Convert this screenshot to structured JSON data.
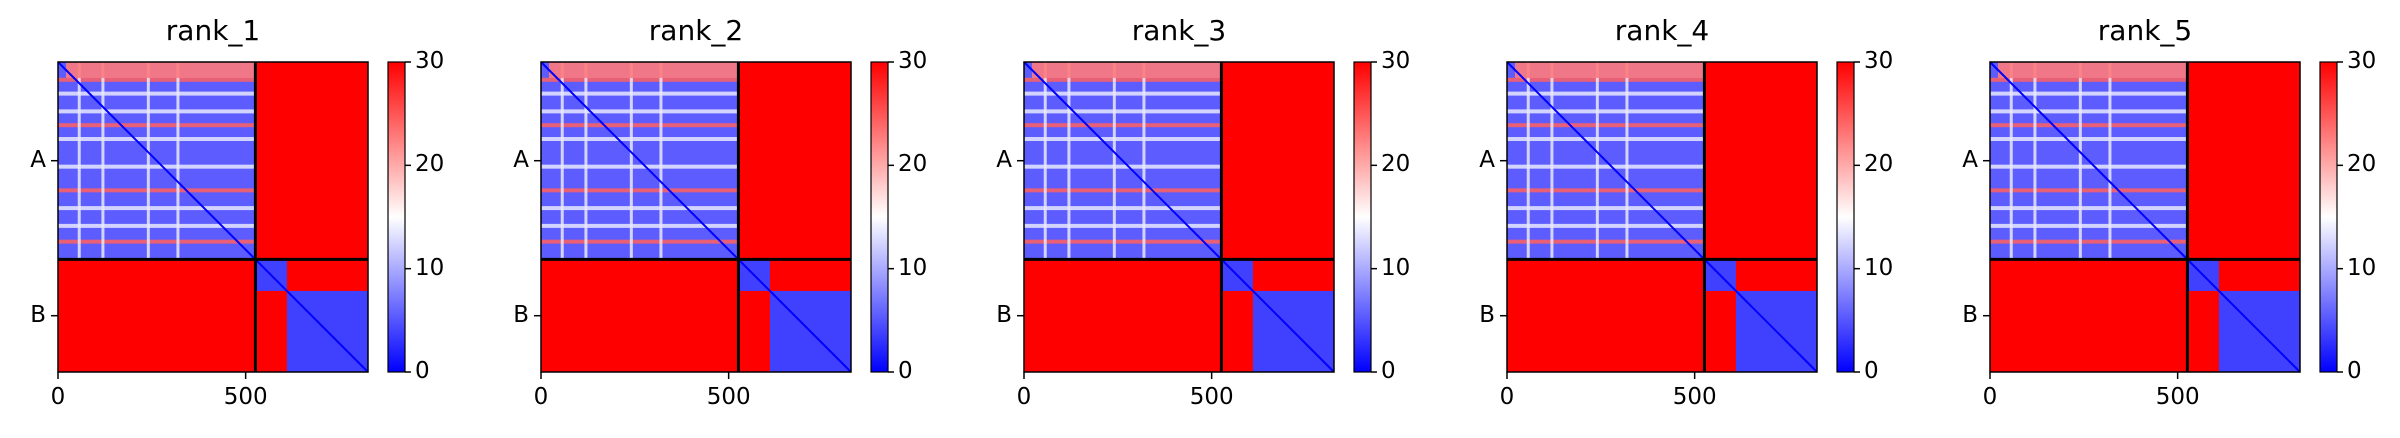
{
  "figure": {
    "colormap": [
      "#0000ff",
      "#ffffff",
      "#ff0000"
    ],
    "frame_color": "#000000"
  },
  "chart_data": [
    {
      "type": "heatmap",
      "title": "rank_1",
      "x_ticks": [
        0,
        500
      ],
      "x_range": [
        0,
        826
      ],
      "y_groups": [
        {
          "label": "A",
          "start": 0,
          "end": 526
        },
        {
          "label": "B",
          "start": 526,
          "end": 826
        }
      ],
      "colorbar": {
        "min": 0,
        "max": 30,
        "ticks": [
          0,
          10,
          20,
          30
        ]
      },
      "block_boundary": 526
    },
    {
      "type": "heatmap",
      "title": "rank_2",
      "x_ticks": [
        0,
        500
      ],
      "x_range": [
        0,
        826
      ],
      "y_groups": [
        {
          "label": "A",
          "start": 0,
          "end": 526
        },
        {
          "label": "B",
          "start": 526,
          "end": 826
        }
      ],
      "colorbar": {
        "min": 0,
        "max": 30,
        "ticks": [
          0,
          10,
          20,
          30
        ]
      },
      "block_boundary": 526
    },
    {
      "type": "heatmap",
      "title": "rank_3",
      "x_ticks": [
        0,
        500
      ],
      "x_range": [
        0,
        826
      ],
      "y_groups": [
        {
          "label": "A",
          "start": 0,
          "end": 526
        },
        {
          "label": "B",
          "start": 526,
          "end": 826
        }
      ],
      "colorbar": {
        "min": 0,
        "max": 30,
        "ticks": [
          0,
          10,
          20,
          30
        ]
      },
      "block_boundary": 526
    },
    {
      "type": "heatmap",
      "title": "rank_4",
      "x_ticks": [
        0,
        500
      ],
      "x_range": [
        0,
        826
      ],
      "y_groups": [
        {
          "label": "A",
          "start": 0,
          "end": 526
        },
        {
          "label": "B",
          "start": 526,
          "end": 826
        }
      ],
      "colorbar": {
        "min": 0,
        "max": 30,
        "ticks": [
          0,
          10,
          20,
          30
        ]
      },
      "block_boundary": 526
    },
    {
      "type": "heatmap",
      "title": "rank_5",
      "x_ticks": [
        0,
        500
      ],
      "x_range": [
        0,
        826
      ],
      "y_groups": [
        {
          "label": "A",
          "start": 0,
          "end": 526
        },
        {
          "label": "B",
          "start": 526,
          "end": 826
        }
      ],
      "colorbar": {
        "min": 0,
        "max": 30,
        "ticks": [
          0,
          10,
          20,
          30
        ]
      },
      "block_boundary": 526
    }
  ]
}
